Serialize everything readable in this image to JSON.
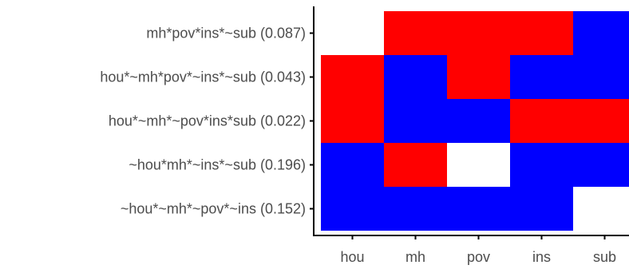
{
  "chart_data": {
    "type": "heatmap",
    "x_categories": [
      "hou",
      "mh",
      "pov",
      "ins",
      "sub"
    ],
    "y_categories": [
      "mh*pov*ins*~sub (0.087)",
      "hou*~mh*pov*~ins*~sub (0.043)",
      "hou*~mh*~pov*ins*sub (0.022)",
      "~hou*mh*~ins*~sub (0.196)",
      "~hou*~mh*~pov*~ins (0.152)"
    ],
    "cells": [
      [
        "absent",
        "present",
        "present",
        "present",
        "negated"
      ],
      [
        "present",
        "negated",
        "present",
        "negated",
        "negated"
      ],
      [
        "present",
        "negated",
        "negated",
        "present",
        "present"
      ],
      [
        "negated",
        "present",
        "absent",
        "negated",
        "negated"
      ],
      [
        "negated",
        "negated",
        "negated",
        "negated",
        "absent"
      ]
    ],
    "value_colors": {
      "present": "#ff0000",
      "negated": "#0000ff",
      "absent": "#ffffff"
    },
    "axis_color": "#000000",
    "tick_label_color": "#4d4d4d",
    "grid": false,
    "legend": "none"
  }
}
